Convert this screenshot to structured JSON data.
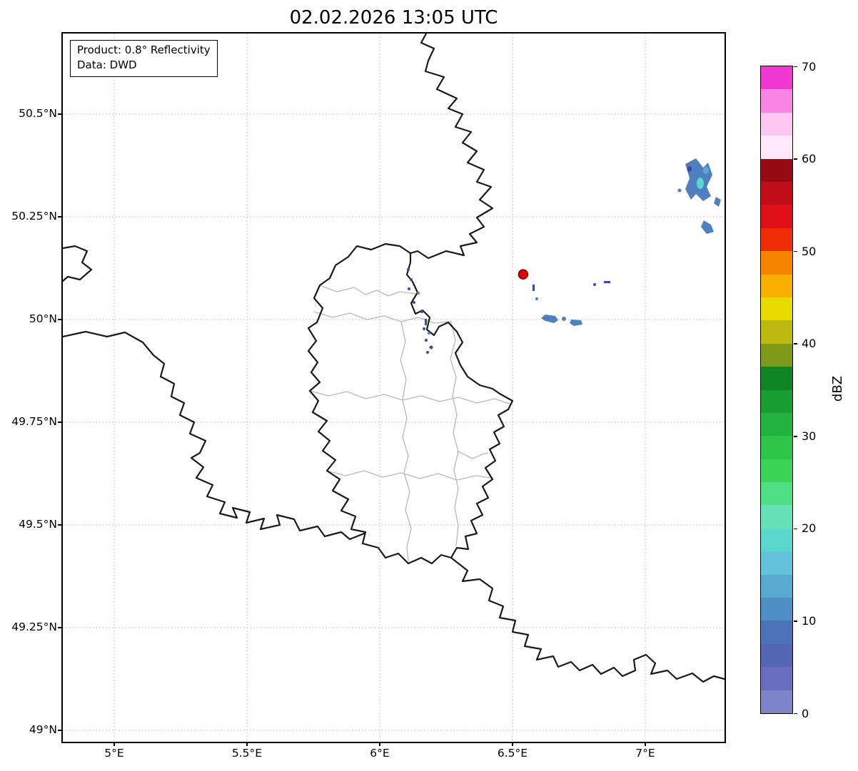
{
  "title": "02.02.2026 13:05 UTC",
  "info_box": {
    "product_line": "Product: 0.8° Reflectivity",
    "data_line": "Data: DWD"
  },
  "axes": {
    "lon_range": [
      4.8065,
      7.2984
    ],
    "lat_range": [
      48.9722,
      50.6962
    ],
    "lon_ticks": [
      {
        "label": "5°E",
        "value": 5.0
      },
      {
        "label": "5.5°E",
        "value": 5.5
      },
      {
        "label": "6°E",
        "value": 6.0
      },
      {
        "label": "6.5°E",
        "value": 6.5
      },
      {
        "label": "7°E",
        "value": 7.0
      }
    ],
    "lat_ticks": [
      {
        "label": "50.5°N",
        "value": 50.5
      },
      {
        "label": "50.25°N",
        "value": 50.25
      },
      {
        "label": "50°N",
        "value": 50.0
      },
      {
        "label": "49.75°N",
        "value": 49.75
      },
      {
        "label": "49.5°N",
        "value": 49.5
      },
      {
        "label": "49.25°N",
        "value": 49.25
      },
      {
        "label": "49°N",
        "value": 49.0
      }
    ]
  },
  "colorbar": {
    "label": "dBZ",
    "vmin": 0,
    "vmax": 70,
    "tick_values": [
      0,
      10,
      20,
      30,
      40,
      50,
      60,
      70
    ],
    "colors_bottom_to_top": [
      "#7e82c9",
      "#6a6ec0",
      "#5566b4",
      "#4c73b9",
      "#4f8fc5",
      "#58aad1",
      "#62c3da",
      "#5cd7cd",
      "#66e2b9",
      "#4fdf85",
      "#3bd458",
      "#2dc449",
      "#23b23d",
      "#199d30",
      "#108525",
      "#7d9a18",
      "#bcba10",
      "#e7db00",
      "#f8b000",
      "#f58300",
      "#ee2c05",
      "#df1016",
      "#c00e18",
      "#970a14",
      "#ffeafb",
      "#ffc6f2",
      "#fb85e5",
      "#ef38d0"
    ]
  },
  "marker": {
    "lon": 6.54,
    "lat": 50.11,
    "fill": "#e50000",
    "edge": "#700000"
  },
  "map_colors": {
    "national_border": "#1a1a1a",
    "regional_border": "#b8b8b8",
    "gridline": "#c2c2c2",
    "echo_blue": "#4e7fbe",
    "echo_navy": "#3a4aa6",
    "echo_teal": "#5cd7cd",
    "echo_lightblue": "#58aad1"
  }
}
